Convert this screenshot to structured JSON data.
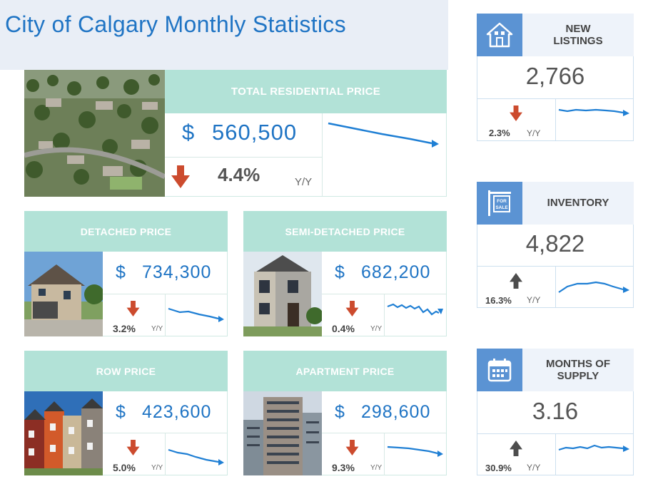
{
  "title": "City of Calgary Monthly Statistics",
  "colors": {
    "accent_blue": "#1f74c4",
    "teal_header": "#b2e2d7",
    "down_arrow": "#cc4b2e",
    "up_arrow": "#4d4d4d",
    "sparkline": "#1f7fd4"
  },
  "total": {
    "label": "TOTAL RESIDENTIAL PRICE",
    "currency": "$",
    "price": "560,500",
    "change": "4.4%",
    "direction": "down",
    "yy": "Y/Y",
    "photo": "aerial-suburb-photo"
  },
  "detached": {
    "label": "DETACHED PRICE",
    "currency": "$",
    "price": "734,300",
    "change": "3.2%",
    "direction": "down",
    "yy": "Y/Y",
    "photo": "detached-house-photo"
  },
  "semi": {
    "label": "SEMI-DETACHED PRICE",
    "currency": "$",
    "price": "682,200",
    "change": "0.4%",
    "direction": "down",
    "yy": "Y/Y",
    "photo": "semi-detached-house-photo"
  },
  "row": {
    "label": "ROW PRICE",
    "currency": "$",
    "price": "423,600",
    "change": "5.0%",
    "direction": "down",
    "yy": "Y/Y",
    "photo": "rowhouse-photo"
  },
  "apartment": {
    "label": "APARTMENT PRICE",
    "currency": "$",
    "price": "298,600",
    "change": "9.3%",
    "direction": "down",
    "yy": "Y/Y",
    "photo": "apartment-tower-photo"
  },
  "new_listings": {
    "label_line1": "NEW",
    "label_line2": "LISTINGS",
    "value": "2,766",
    "change": "2.3%",
    "direction": "down",
    "yy": "Y/Y",
    "icon": "house-icon"
  },
  "inventory": {
    "label": "INVENTORY",
    "value": "4,822",
    "change": "16.3%",
    "direction": "up",
    "yy": "Y/Y",
    "icon": "for-sale-sign-icon",
    "icon_text_1": "FOR",
    "icon_text_2": "SALE"
  },
  "months_supply": {
    "label_line1": "MONTHS OF",
    "label_line2": "SUPPLY",
    "value": "3.16",
    "change": "30.9%",
    "direction": "up",
    "yy": "Y/Y",
    "icon": "calendar-icon"
  }
}
